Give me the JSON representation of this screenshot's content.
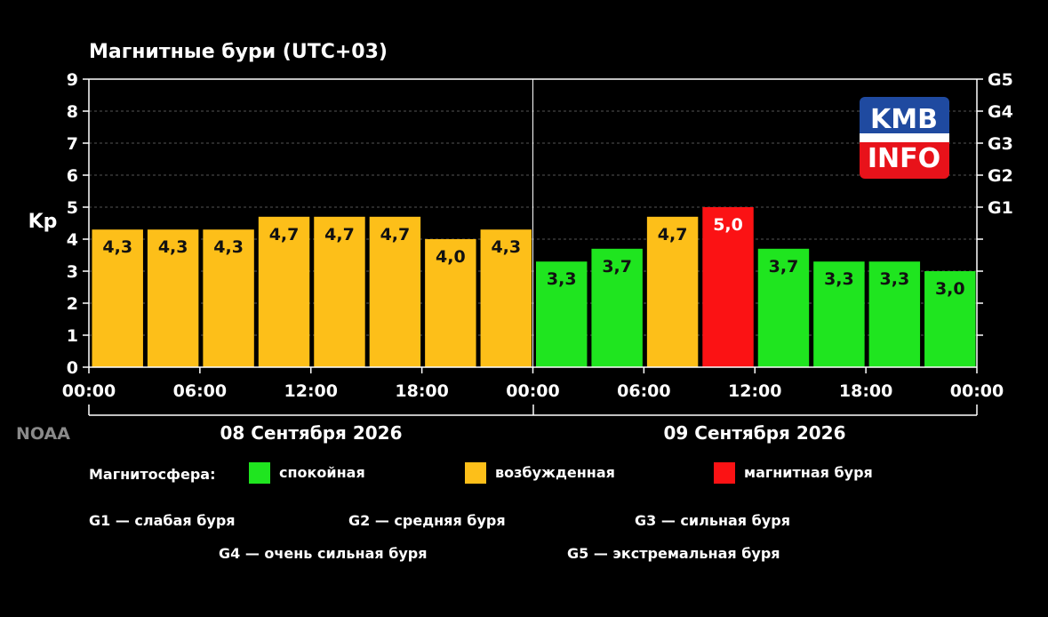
{
  "chart_data": {
    "type": "bar",
    "title": "Магнитные бури (UTC+03)",
    "ylabel": "Kp",
    "ylim": [
      0,
      9
    ],
    "yticks": [
      "0",
      "1",
      "2",
      "3",
      "4",
      "5",
      "6",
      "7",
      "8",
      "9"
    ],
    "right_ticks": [
      {
        "y": 5,
        "label": "G1"
      },
      {
        "y": 6,
        "label": "G2"
      },
      {
        "y": 7,
        "label": "G3"
      },
      {
        "y": 8,
        "label": "G4"
      },
      {
        "y": 9,
        "label": "G5"
      },
      {
        "y": 1,
        "label": ""
      },
      {
        "y": 2,
        "label": ""
      },
      {
        "y": 3,
        "label": ""
      },
      {
        "y": 4,
        "label": ""
      }
    ],
    "xtick_labels": [
      "00:00",
      "06:00",
      "12:00",
      "18:00",
      "00:00",
      "06:00",
      "12:00",
      "18:00",
      "00:00"
    ],
    "dates": [
      "08 Сентября 2026",
      "09 Сентября 2026"
    ],
    "bars": [
      {
        "value": 4.3,
        "label": "4,3",
        "level": "excited"
      },
      {
        "value": 4.3,
        "label": "4,3",
        "level": "excited"
      },
      {
        "value": 4.3,
        "label": "4,3",
        "level": "excited"
      },
      {
        "value": 4.7,
        "label": "4,7",
        "level": "excited"
      },
      {
        "value": 4.7,
        "label": "4,7",
        "level": "excited"
      },
      {
        "value": 4.7,
        "label": "4,7",
        "level": "excited"
      },
      {
        "value": 4.0,
        "label": "4,0",
        "level": "excited"
      },
      {
        "value": 4.3,
        "label": "4,3",
        "level": "excited"
      },
      {
        "value": 3.3,
        "label": "3,3",
        "level": "calm"
      },
      {
        "value": 3.7,
        "label": "3,7",
        "level": "calm"
      },
      {
        "value": 4.7,
        "label": "4,7",
        "level": "excited"
      },
      {
        "value": 5.0,
        "label": "5,0",
        "level": "storm"
      },
      {
        "value": 3.7,
        "label": "3,7",
        "level": "calm"
      },
      {
        "value": 3.3,
        "label": "3,3",
        "level": "calm"
      },
      {
        "value": 3.3,
        "label": "3,3",
        "level": "calm"
      },
      {
        "value": 3.0,
        "label": "3,0",
        "level": "calm"
      }
    ],
    "colors": {
      "calm": "#1fe51f",
      "excited": "#fdbf19",
      "storm": "#fb1214"
    },
    "grid": true,
    "source": "NOAA"
  },
  "legend": {
    "title": "Магнитосфера:",
    "items": [
      {
        "label": "спокойная",
        "color": "#1fe51f"
      },
      {
        "label": "возбужденная",
        "color": "#fdbf19"
      },
      {
        "label": "магнитная буря",
        "color": "#fb1214"
      }
    ],
    "scale": [
      "G1 — слабая буря",
      "G2 — средняя буря",
      "G3 — сильная буря",
      "G4 — очень сильная буря",
      "G5 — экстремальная буря"
    ]
  },
  "logo": {
    "top": "KMB",
    "bottom": "INFO",
    "top_color": "#1f4aa0",
    "bottom_color": "#e8121a"
  }
}
